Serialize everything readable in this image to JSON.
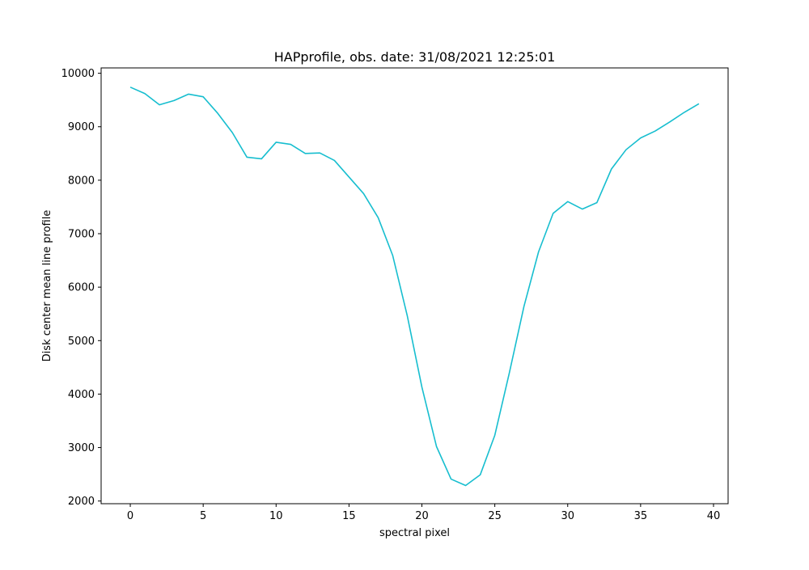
{
  "chart_data": {
    "type": "line",
    "title": "HAPprofile, obs. date: 31/08/2021 12:25:01",
    "xlabel": "spectral pixel",
    "ylabel": "Disk center mean line profile",
    "xlim": [
      -2,
      41
    ],
    "ylim": [
      1950,
      10100
    ],
    "xticks": [
      0,
      5,
      10,
      15,
      20,
      25,
      30,
      35,
      40
    ],
    "yticks": [
      2000,
      3000,
      4000,
      5000,
      6000,
      7000,
      8000,
      9000,
      10000
    ],
    "grid": false,
    "series": [
      {
        "color": "#17becf",
        "x": [
          0,
          1,
          2,
          3,
          4,
          5,
          6,
          7,
          8,
          9,
          10,
          11,
          12,
          13,
          14,
          15,
          16,
          17,
          18,
          19,
          20,
          21,
          22,
          23,
          24,
          25,
          26,
          27,
          28,
          29,
          30,
          31,
          32,
          33,
          34,
          35,
          36,
          37,
          38,
          39
        ],
        "y": [
          9740,
          9620,
          9410,
          9490,
          9610,
          9560,
          9250,
          8890,
          8430,
          8400,
          8710,
          8670,
          8500,
          8510,
          8370,
          8060,
          7750,
          7300,
          6590,
          5460,
          4130,
          3020,
          2410,
          2290,
          2490,
          3230,
          4400,
          5640,
          6660,
          7380,
          7600,
          7460,
          7580,
          8210,
          8570,
          8790,
          8920,
          9090,
          9270,
          9430
        ]
      }
    ]
  }
}
